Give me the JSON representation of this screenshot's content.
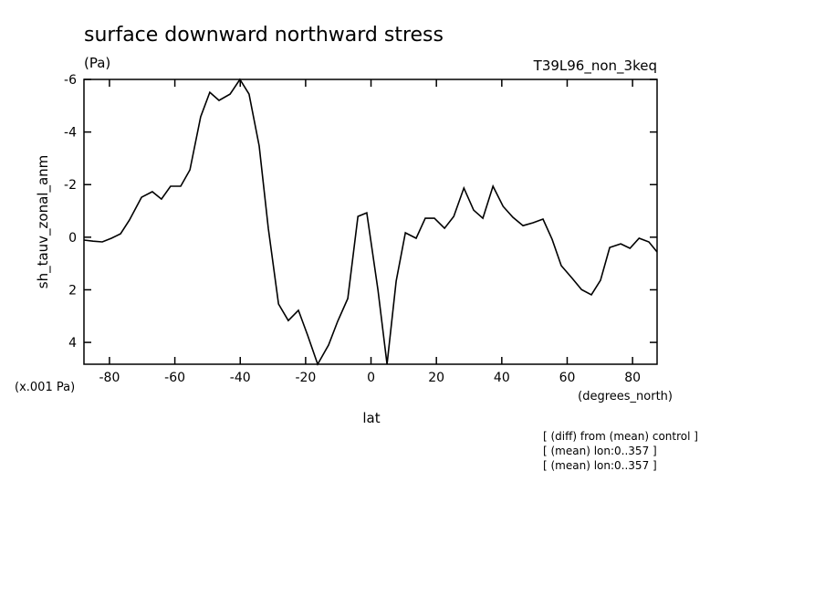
{
  "chart_data": {
    "type": "line",
    "title": "surface downward northward stress",
    "subtitle": "(Pa)",
    "run_label": "T39L96_non_3keq",
    "y_label": "sh_tauv_zonal_anm",
    "y_units": "(x.001 Pa)",
    "x_units": "(degrees_north)",
    "x_label": "lat",
    "notes": [
      "[ (diff) from (mean) control ]",
      "[ (mean) lon:0..357 ]",
      "[ (mean) lon:0..357 ]"
    ],
    "x": [
      -87.8,
      -85.0,
      -82.2,
      -79.4,
      -76.6,
      -73.9,
      -70.2,
      -66.9,
      -64.1,
      -61.3,
      -58.2,
      -55.4,
      -52.1,
      -49.3,
      -46.5,
      -43.1,
      -40.1,
      -37.3,
      -34.2,
      -31.4,
      -28.3,
      -25.3,
      -22.2,
      -19.4,
      -16.3,
      -13.0,
      -10.2,
      -7.1,
      -4.0,
      -1.3,
      2.1,
      4.9,
      7.7,
      10.5,
      13.8,
      16.6,
      19.4,
      22.5,
      25.3,
      28.4,
      31.4,
      34.2,
      37.3,
      40.4,
      43.4,
      46.5,
      49.6,
      52.6,
      55.4,
      58.2,
      61.6,
      64.4,
      67.4,
      70.2,
      73.0,
      76.4,
      79.2,
      82.0,
      85.0,
      87.5
    ],
    "series": [
      {
        "color": "#000000",
        "values": [
          0.11,
          0.15,
          0.18,
          0.04,
          -0.13,
          -0.65,
          -1.52,
          -1.73,
          -1.45,
          -1.94,
          -1.94,
          -2.56,
          -4.58,
          -5.51,
          -5.2,
          -5.44,
          -6,
          -5.44,
          -3.47,
          -0.34,
          2.54,
          3.17,
          2.78,
          3.72,
          4.83,
          4.1,
          3.2,
          2.33,
          -0.79,
          -0.93,
          1.99,
          4.83,
          1.67,
          -0.17,
          0.04,
          -0.72,
          -0.72,
          -0.34,
          -0.79,
          -1.87,
          -1.03,
          -0.72,
          -1.94,
          -1.17,
          -0.76,
          -0.44,
          -0.55,
          -0.69,
          0.08,
          1.08,
          1.57,
          1.99,
          2.19,
          1.64,
          0.39,
          0.25,
          0.42,
          0.04,
          0.18,
          0.56
        ]
      }
    ],
    "xlim": [
      -87.8,
      87.5
    ],
    "xticks": [
      -80,
      -60,
      -40,
      -20,
      0,
      20,
      40,
      60,
      80
    ],
    "ylim": [
      4.83,
      -6
    ],
    "yticks": [
      -6,
      -4,
      -2,
      0,
      2,
      4
    ]
  }
}
